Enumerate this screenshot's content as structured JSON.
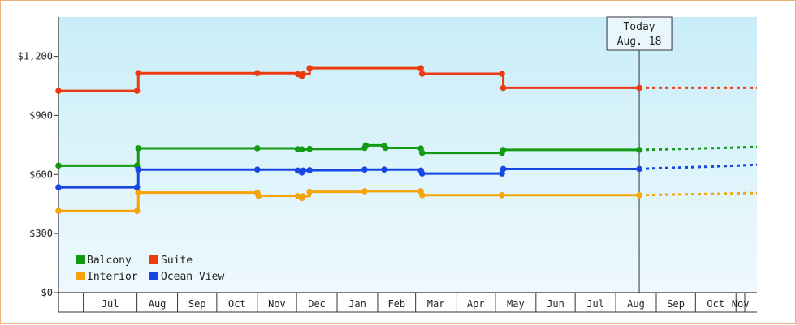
{
  "chart_data": {
    "type": "line",
    "title": "",
    "xlabel": "",
    "ylabel": "",
    "ylim": [
      0,
      1400
    ],
    "y_ticks": [
      {
        "value": 0,
        "label": "$0"
      },
      {
        "value": 300,
        "label": "$300"
      },
      {
        "value": 600,
        "label": "$600"
      },
      {
        "value": 900,
        "label": "$900"
      },
      {
        "value": 1200,
        "label": "$1,200"
      }
    ],
    "x_range": [
      "2015-06-01",
      "2016-11-16"
    ],
    "x_ticks": [
      {
        "label": "Jul",
        "start": "2015-06-20",
        "end": "2015-07-31"
      },
      {
        "label": "Aug",
        "start": "2015-07-31",
        "end": "2015-08-31"
      },
      {
        "label": "Sep",
        "start": "2015-08-31",
        "end": "2015-09-30"
      },
      {
        "label": "Oct",
        "start": "2015-09-30",
        "end": "2015-10-31"
      },
      {
        "label": "Nov",
        "start": "2015-10-31",
        "end": "2015-11-30"
      },
      {
        "label": "Dec",
        "start": "2015-11-30",
        "end": "2015-12-31"
      },
      {
        "label": "Jan",
        "start": "2015-12-31",
        "end": "2016-01-31"
      },
      {
        "label": "Feb",
        "start": "2016-01-31",
        "end": "2016-02-29"
      },
      {
        "label": "Mar",
        "start": "2016-02-29",
        "end": "2016-03-31"
      },
      {
        "label": "Apr",
        "start": "2016-03-31",
        "end": "2016-04-30"
      },
      {
        "label": "May",
        "start": "2016-04-30",
        "end": "2016-05-31"
      },
      {
        "label": "Jun",
        "start": "2016-05-31",
        "end": "2016-06-30"
      },
      {
        "label": "Jul",
        "start": "2016-06-30",
        "end": "2016-07-31"
      },
      {
        "label": "Aug",
        "start": "2016-07-31",
        "end": "2016-08-31"
      },
      {
        "label": "Sep",
        "start": "2016-08-31",
        "end": "2016-09-30"
      },
      {
        "label": "Oct",
        "start": "2016-09-30",
        "end": "2016-10-31"
      },
      {
        "label": "Nov",
        "start": "2016-10-31",
        "end": "2016-11-30"
      }
    ],
    "today": {
      "line1": "Today",
      "line2": "Aug. 18",
      "date": "2016-08-18"
    },
    "legend_position": "bottom-left",
    "grid": false,
    "series": [
      {
        "name": "Balcony",
        "color": "#129a12",
        "points": [
          [
            "2015-06-01",
            645
          ],
          [
            "2015-07-31",
            645
          ],
          [
            "2015-08-01",
            733
          ],
          [
            "2015-10-31",
            733
          ],
          [
            "2015-12-01",
            728
          ],
          [
            "2015-12-04",
            728
          ],
          [
            "2015-12-10",
            730
          ],
          [
            "2016-01-21",
            735
          ],
          [
            "2016-01-22",
            748
          ],
          [
            "2016-02-05",
            745
          ],
          [
            "2016-02-06",
            735
          ],
          [
            "2016-03-04",
            732
          ],
          [
            "2016-03-05",
            710
          ],
          [
            "2016-05-05",
            710
          ],
          [
            "2016-05-06",
            725
          ],
          [
            "2016-08-18",
            725
          ]
        ],
        "forecast": [
          [
            "2016-08-18",
            725
          ],
          [
            "2016-09-01",
            727
          ],
          [
            "2016-10-01",
            732
          ],
          [
            "2016-10-31",
            737
          ],
          [
            "2016-11-16",
            740
          ]
        ]
      },
      {
        "name": "Suite",
        "color": "#ee3a10",
        "points": [
          [
            "2015-06-01",
            1025
          ],
          [
            "2015-07-31",
            1025
          ],
          [
            "2015-08-01",
            1115
          ],
          [
            "2015-10-31",
            1115
          ],
          [
            "2015-12-01",
            1110
          ],
          [
            "2015-12-04",
            1100
          ],
          [
            "2015-12-05",
            1110
          ],
          [
            "2015-12-10",
            1140
          ],
          [
            "2016-03-04",
            1140
          ],
          [
            "2016-03-05",
            1112
          ],
          [
            "2016-05-05",
            1112
          ],
          [
            "2016-05-06",
            1040
          ],
          [
            "2016-08-18",
            1040
          ]
        ],
        "forecast": [
          [
            "2016-08-18",
            1040
          ],
          [
            "2016-11-16",
            1040
          ]
        ]
      },
      {
        "name": "Interior",
        "color": "#f5a40a",
        "points": [
          [
            "2015-06-01",
            415
          ],
          [
            "2015-07-31",
            415
          ],
          [
            "2015-08-01",
            508
          ],
          [
            "2015-10-31",
            508
          ],
          [
            "2015-11-01",
            492
          ],
          [
            "2015-12-01",
            490
          ],
          [
            "2015-12-04",
            480
          ],
          [
            "2015-12-05",
            490
          ],
          [
            "2015-12-10",
            512
          ],
          [
            "2016-01-21",
            515
          ],
          [
            "2016-03-04",
            515
          ],
          [
            "2016-03-05",
            495
          ],
          [
            "2016-05-05",
            495
          ],
          [
            "2016-08-18",
            495
          ]
        ],
        "forecast": [
          [
            "2016-08-18",
            495
          ],
          [
            "2016-09-01",
            497
          ],
          [
            "2016-10-01",
            500
          ],
          [
            "2016-10-31",
            504
          ],
          [
            "2016-11-16",
            506
          ]
        ]
      },
      {
        "name": "Ocean View",
        "color": "#1646e6",
        "points": [
          [
            "2015-06-01",
            535
          ],
          [
            "2015-07-31",
            535
          ],
          [
            "2015-08-01",
            625
          ],
          [
            "2015-10-31",
            625
          ],
          [
            "2015-12-01",
            620
          ],
          [
            "2015-12-04",
            610
          ],
          [
            "2015-12-05",
            620
          ],
          [
            "2015-12-10",
            622
          ],
          [
            "2016-01-21",
            625
          ],
          [
            "2016-02-05",
            625
          ],
          [
            "2016-03-04",
            620
          ],
          [
            "2016-03-05",
            605
          ],
          [
            "2016-05-05",
            605
          ],
          [
            "2016-05-06",
            628
          ],
          [
            "2016-08-18",
            628
          ]
        ],
        "forecast": [
          [
            "2016-08-18",
            628
          ],
          [
            "2016-09-01",
            632
          ],
          [
            "2016-10-01",
            638
          ],
          [
            "2016-10-31",
            645
          ],
          [
            "2016-11-16",
            650
          ]
        ]
      }
    ]
  }
}
